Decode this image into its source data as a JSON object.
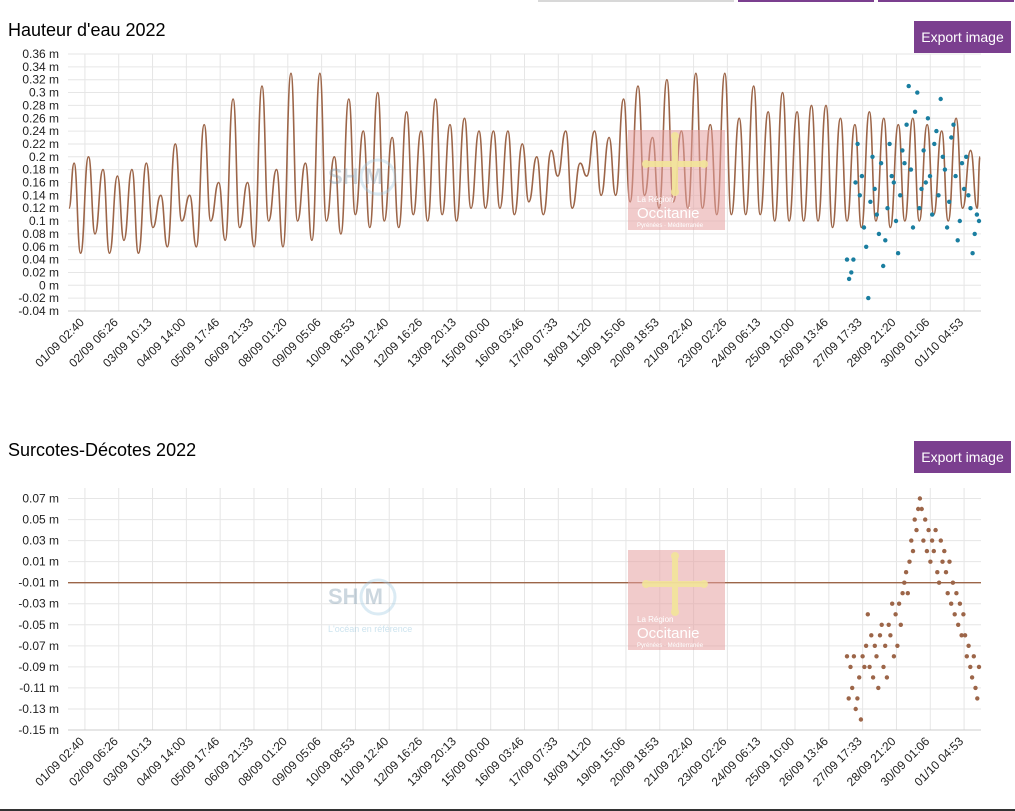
{
  "colors": {
    "line": "#9c6548",
    "dots_top": "#1a7ea0",
    "dots_bottom": "#9c6548",
    "grid": "#e6e6e6",
    "button": "#7b3f8f"
  },
  "buttons": {
    "export_top": "Export image",
    "export_bottom": "Export image"
  },
  "logos": {
    "shom_text": "SH  M",
    "shom_tagline": "L'océan en référence",
    "region_line1": "La Région",
    "region_line2": "Occitanie",
    "region_line3": "Pyrénées · Méditerranée"
  },
  "chart_data": [
    {
      "type": "line",
      "title": "Hauteur d'eau 2022",
      "unit": "m",
      "ylim": [
        -0.04,
        0.36
      ],
      "y_ticks": [
        "0.36 m",
        "0.34 m",
        "0.32 m",
        "0.3 m",
        "0.28 m",
        "0.26 m",
        "0.24 m",
        "0.22 m",
        "0.2 m",
        "0.18 m",
        "0.16 m",
        "0.14 m",
        "0.12 m",
        "0.1 m",
        "0.08 m",
        "0.06 m",
        "0.04 m",
        "0.02 m",
        "0 m",
        "-0.02 m",
        "-0.04 m"
      ],
      "x_ticks": [
        "01/09 02:40",
        "02/09 06:26",
        "03/09 10:13",
        "04/09 14:00",
        "05/09 17:46",
        "06/09 21:33",
        "08/09 01:20",
        "09/09 05:06",
        "10/09 08:53",
        "11/09 12:40",
        "12/09 16:26",
        "13/09 20:13",
        "15/09 00:00",
        "16/09 03:46",
        "17/09 07:33",
        "18/09 11:20",
        "19/09 15:06",
        "20/09 18:53",
        "21/09 22:40",
        "23/09 02:26",
        "24/09 06:13",
        "25/09 10:00",
        "26/09 13:46",
        "27/09 17:33",
        "28/09 21:20",
        "30/09 01:06",
        "01/10 04:53"
      ],
      "grid": true,
      "series": [
        {
          "kind": "line",
          "peaks": [
            0.19,
            0.2,
            0.18,
            0.17,
            0.18,
            0.19,
            0.14,
            0.22,
            0.14,
            0.25,
            0.16,
            0.29,
            0.16,
            0.31,
            0.18,
            0.33,
            0.19,
            0.33,
            0.2,
            0.29,
            0.24,
            0.3,
            0.23,
            0.27,
            0.24,
            0.29,
            0.25,
            0.26,
            0.24,
            0.24,
            0.24,
            0.22,
            0.2,
            0.21,
            0.24,
            0.19,
            0.24,
            0.23,
            0.29,
            0.31,
            0.23,
            0.32,
            0.24,
            0.33,
            0.25,
            0.33,
            0.26,
            0.31,
            0.27,
            0.3,
            0.27,
            0.28,
            0.28,
            0.26,
            0.25,
            0.27,
            0.26,
            0.25,
            0.26,
            0.25,
            0.24,
            0.26,
            0.21
          ],
          "troughs": [
            0.05,
            0.08,
            0.05,
            0.07,
            0.05,
            0.09,
            0.06,
            0.1,
            0.06,
            0.1,
            0.07,
            0.09,
            0.06,
            0.1,
            0.06,
            0.1,
            0.07,
            0.1,
            0.08,
            0.11,
            0.09,
            0.1,
            0.09,
            0.11,
            0.1,
            0.11,
            0.1,
            0.12,
            0.12,
            0.12,
            0.11,
            0.13,
            0.11,
            0.17,
            0.12,
            0.17,
            0.14,
            0.14,
            0.13,
            0.14,
            0.12,
            0.13,
            0.12,
            0.12,
            0.11,
            0.11,
            0.11,
            0.11,
            0.1,
            0.1,
            0.1,
            0.1,
            0.09,
            0.1,
            0.09,
            0.1,
            0.09,
            0.1,
            0.1,
            0.11,
            0.1,
            0.12,
            0.12
          ]
        },
        {
          "kind": "scatter",
          "values": [
            0.04,
            0.01,
            0.02,
            0.04,
            0.16,
            0.22,
            0.14,
            0.17,
            0.09,
            0.06,
            -0.02,
            0.13,
            0.2,
            0.15,
            0.11,
            0.08,
            0.19,
            0.03,
            0.07,
            0.12,
            0.22,
            0.17,
            0.16,
            0.1,
            0.05,
            0.14,
            0.21,
            0.19,
            0.25,
            0.31,
            0.18,
            0.09,
            0.27,
            0.3,
            0.12,
            0.15,
            0.21,
            0.16,
            0.26,
            0.17,
            0.11,
            0.22,
            0.24,
            0.14,
            0.29,
            0.2,
            0.18,
            0.09,
            0.13,
            0.23,
            0.25,
            0.17,
            0.07,
            0.1,
            0.19,
            0.15,
            0.2,
            0.14,
            0.12,
            0.05,
            0.08,
            0.11,
            0.1
          ]
        }
      ]
    },
    {
      "type": "line",
      "title": "Surcotes-Décotes 2022",
      "unit": "m",
      "ylim": [
        -0.15,
        0.08
      ],
      "y_ticks": [
        "0.07 m",
        "0.05 m",
        "0.03 m",
        "0.01 m",
        "-0.01 m",
        "-0.03 m",
        "-0.05 m",
        "-0.07 m",
        "-0.09 m",
        "-0.11 m",
        "-0.13 m",
        "-0.15 m"
      ],
      "x_ticks": [
        "01/09 02:40",
        "02/09 06:26",
        "03/09 10:13",
        "04/09 14:00",
        "05/09 17:46",
        "06/09 21:33",
        "08/09 01:20",
        "09/09 05:06",
        "10/09 08:53",
        "11/09 12:40",
        "12/09 16:26",
        "13/09 20:13",
        "15/09 00:00",
        "16/09 03:46",
        "17/09 07:33",
        "18/09 11:20",
        "19/09 15:06",
        "20/09 18:53",
        "21/09 22:40",
        "23/09 02:26",
        "24/09 06:13",
        "25/09 10:00",
        "26/09 13:46",
        "27/09 17:33",
        "28/09 21:20",
        "30/09 01:06",
        "01/10 04:53"
      ],
      "grid": true,
      "series": [
        {
          "kind": "hline",
          "value": -0.01
        },
        {
          "kind": "scatter",
          "values": [
            -0.08,
            -0.12,
            -0.09,
            -0.11,
            -0.08,
            -0.13,
            -0.12,
            -0.1,
            -0.14,
            -0.08,
            -0.09,
            -0.07,
            -0.04,
            -0.09,
            -0.06,
            -0.1,
            -0.07,
            -0.08,
            -0.11,
            -0.06,
            -0.05,
            -0.09,
            -0.07,
            -0.1,
            -0.05,
            -0.06,
            -0.03,
            -0.08,
            -0.04,
            -0.07,
            -0.03,
            -0.05,
            -0.02,
            -0.01,
            0.0,
            -0.02,
            0.01,
            0.03,
            0.02,
            0.05,
            0.04,
            0.06,
            0.07,
            0.06,
            0.03,
            0.05,
            0.02,
            0.04,
            0.01,
            0.03,
            0.02,
            0.04,
            0.0,
            -0.01,
            0.03,
            0.01,
            0.02,
            0.0,
            -0.02,
            0.01,
            -0.03,
            -0.01,
            -0.04,
            -0.02,
            -0.05,
            -0.03,
            -0.06,
            -0.04,
            -0.06,
            -0.08,
            -0.07,
            -0.09,
            -0.1,
            -0.08,
            -0.11,
            -0.12,
            -0.09
          ]
        }
      ]
    }
  ]
}
